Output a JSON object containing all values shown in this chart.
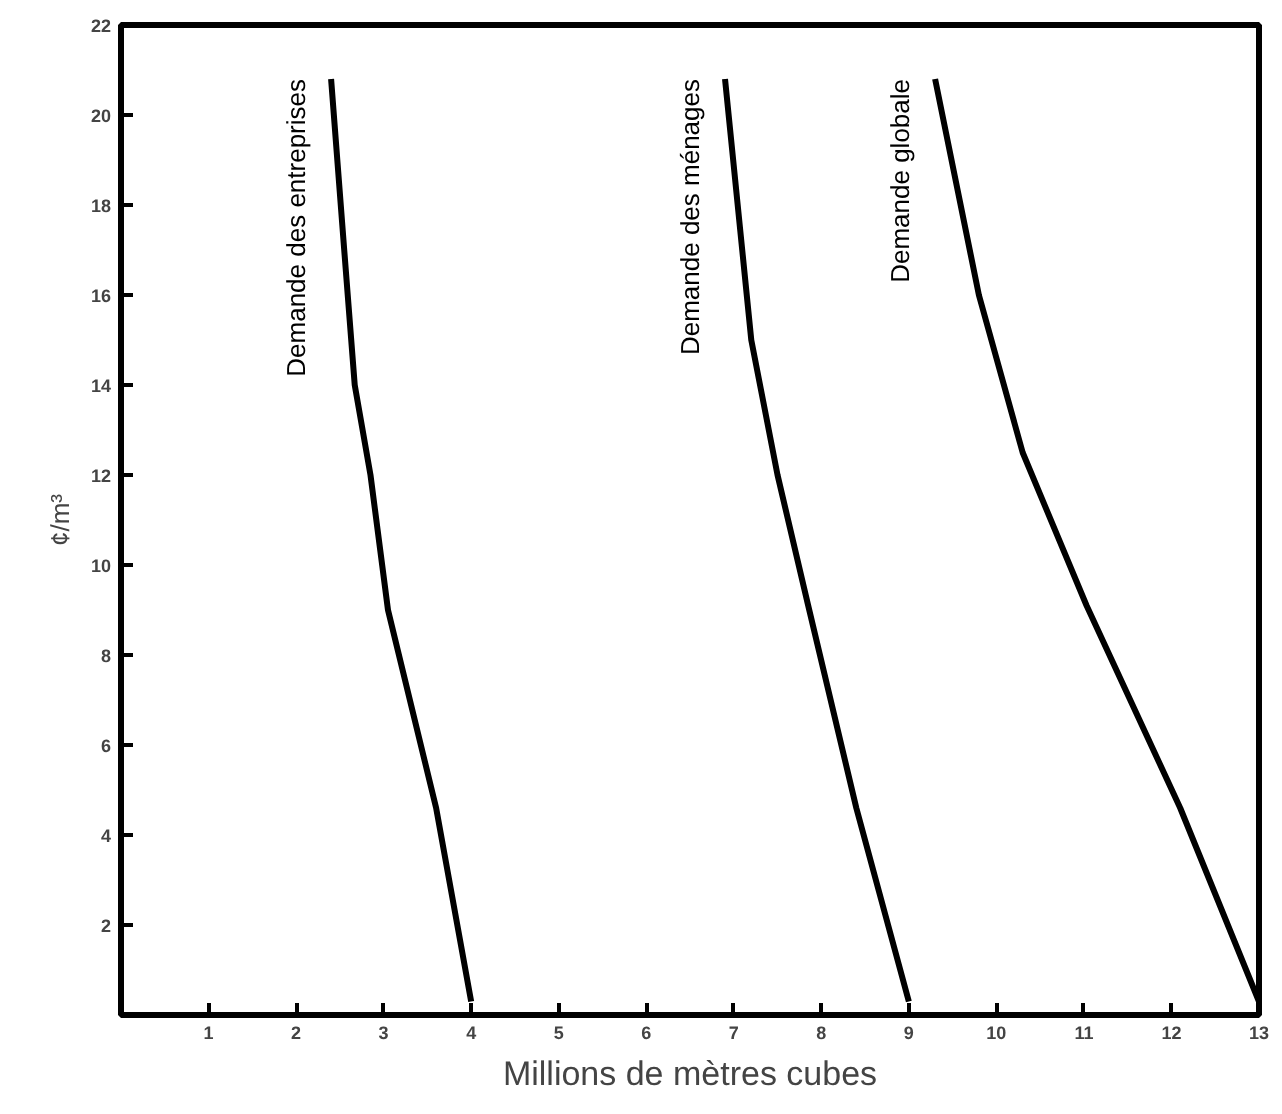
{
  "chart_data": {
    "type": "line",
    "xlabel": "Millions de mètres cubes",
    "ylabel": "¢/m³",
    "xlim": [
      0,
      13
    ],
    "ylim": [
      0,
      22
    ],
    "xticks": [
      1,
      2,
      3,
      4,
      5,
      6,
      7,
      8,
      9,
      10,
      11,
      12,
      13
    ],
    "yticks": [
      2,
      4,
      6,
      8,
      10,
      12,
      14,
      16,
      18,
      20,
      22
    ],
    "grid": false,
    "legend": false,
    "marker": "none",
    "line_style": "solid",
    "series": [
      {
        "name": "Demande des entreprises",
        "color": "#000000",
        "x": [
          4,
          3.6,
          3.05,
          2.85,
          2.67,
          2.55,
          2.4
        ],
        "values": [
          0.3,
          4.6,
          9,
          12,
          14,
          17,
          20.8
        ]
      },
      {
        "name": "Demande des ménages",
        "color": "#000000",
        "x": [
          9,
          8.4,
          7.85,
          7.5,
          7.2,
          6.9
        ],
        "values": [
          0.3,
          4.6,
          9.1,
          12,
          15,
          20.8
        ]
      },
      {
        "name": "Demande globale",
        "color": "#000000",
        "x": [
          13,
          12.1,
          11.03,
          10.3,
          9.8,
          9.3
        ],
        "values": [
          0.3,
          4.6,
          9.1,
          12.5,
          16,
          20.8
        ]
      }
    ]
  }
}
